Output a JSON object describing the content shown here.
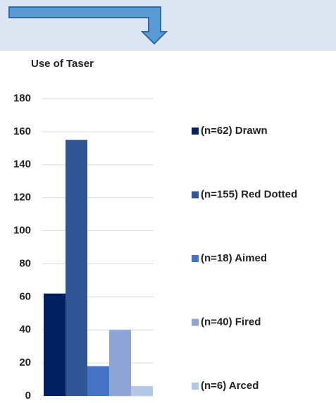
{
  "chart_data": {
    "type": "bar",
    "title": "Use of Taser",
    "series": [
      {
        "name": "(n=62) Drawn",
        "color": "#002060",
        "values": [
          62
        ]
      },
      {
        "name": "(n=155) Red Dotted",
        "color": "#2f5597",
        "values": [
          155
        ]
      },
      {
        "name": "(n=18) Aimed",
        "color": "#4472c4",
        "values": [
          18
        ]
      },
      {
        "name": "(n=40) Fired",
        "color": "#8fa4d6",
        "values": [
          40
        ]
      },
      {
        "name": "(n=6) Arced",
        "color": "#b4c7e7",
        "values": [
          6
        ]
      }
    ],
    "ylim": [
      0,
      180
    ],
    "yticks": [
      0,
      20,
      40,
      60,
      80,
      100,
      120,
      140,
      160,
      180
    ],
    "grid": true,
    "legend": "right"
  }
}
